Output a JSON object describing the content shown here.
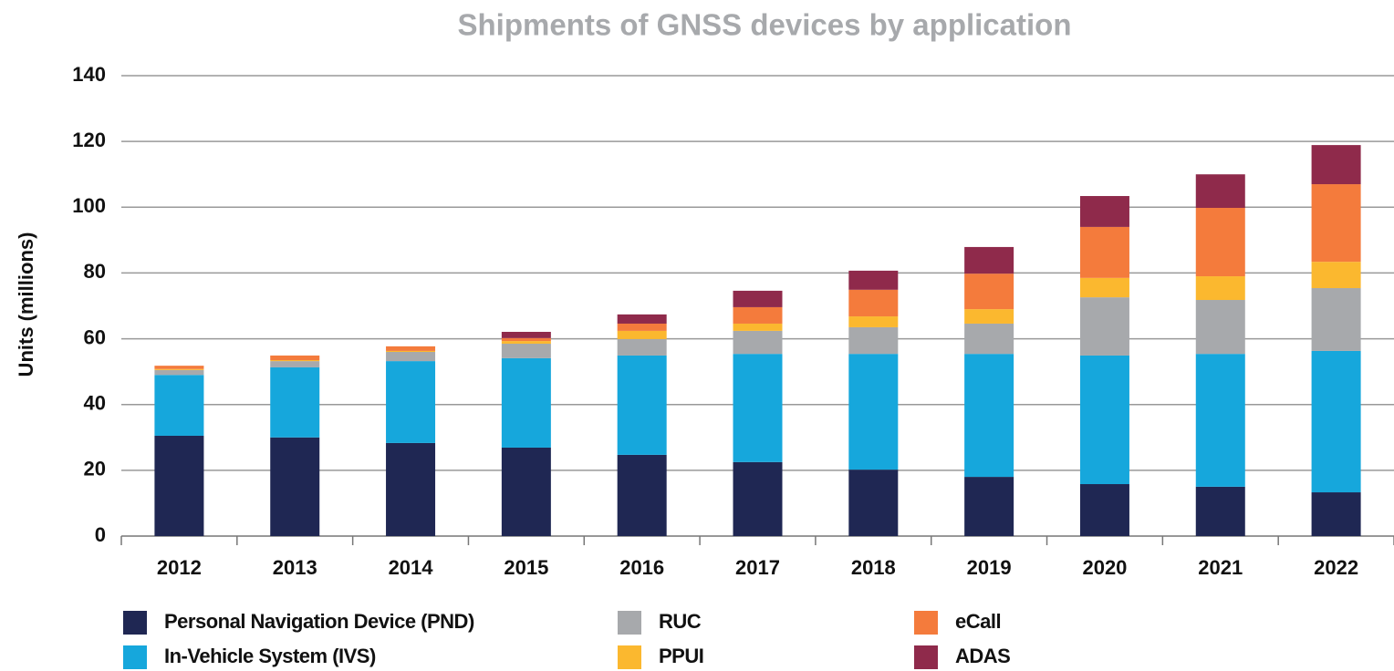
{
  "chart_data": {
    "type": "stacked_bar",
    "title": "Shipments of GNSS devices by application",
    "y_label": "Units (millions)",
    "categories": [
      "2012",
      "2013",
      "2014",
      "2015",
      "2016",
      "2017",
      "2018",
      "2019",
      "2020",
      "2021",
      "2022"
    ],
    "series": [
      {
        "name": "Personal Navigation Device (PND)",
        "color": "#1f2753",
        "values": [
          30.5,
          30,
          28.3,
          26.9,
          24.7,
          22.5,
          20.2,
          18,
          15.8,
          15,
          13.3
        ]
      },
      {
        "name": "In-Vehicle System (IVS)",
        "color": "#16a7dc",
        "values": [
          18.5,
          21.3,
          24.9,
          27.2,
          30.2,
          32.9,
          35.2,
          37.4,
          39.1,
          40.4,
          43
        ]
      },
      {
        "name": "RUC",
        "color": "#a7a9ac",
        "values": [
          1.5,
          1.9,
          2.8,
          4.4,
          5,
          7,
          8.1,
          9.2,
          17.7,
          16.4,
          19.1
        ]
      },
      {
        "name": "PPUI",
        "color": "#fbb82f",
        "values": [
          0.3,
          0.3,
          0.3,
          0.8,
          2.5,
          2.2,
          3.3,
          4.4,
          5.9,
          7.2,
          8
        ]
      },
      {
        "name": "eCall",
        "color": "#f47b3c",
        "values": [
          1,
          1.4,
          1.4,
          0.9,
          2.2,
          5,
          8.1,
          10.8,
          15.5,
          20.8,
          23.6
        ]
      },
      {
        "name": "ADAS",
        "color": "#8f2a4b",
        "values": [
          0,
          0,
          0,
          1.9,
          2.8,
          5,
          5.8,
          8.1,
          9.4,
          10.2,
          11.9
        ]
      }
    ],
    "ylim": [
      0,
      140
    ],
    "yticks": [
      0,
      20,
      40,
      60,
      80,
      100,
      120,
      140
    ],
    "grid": true
  }
}
